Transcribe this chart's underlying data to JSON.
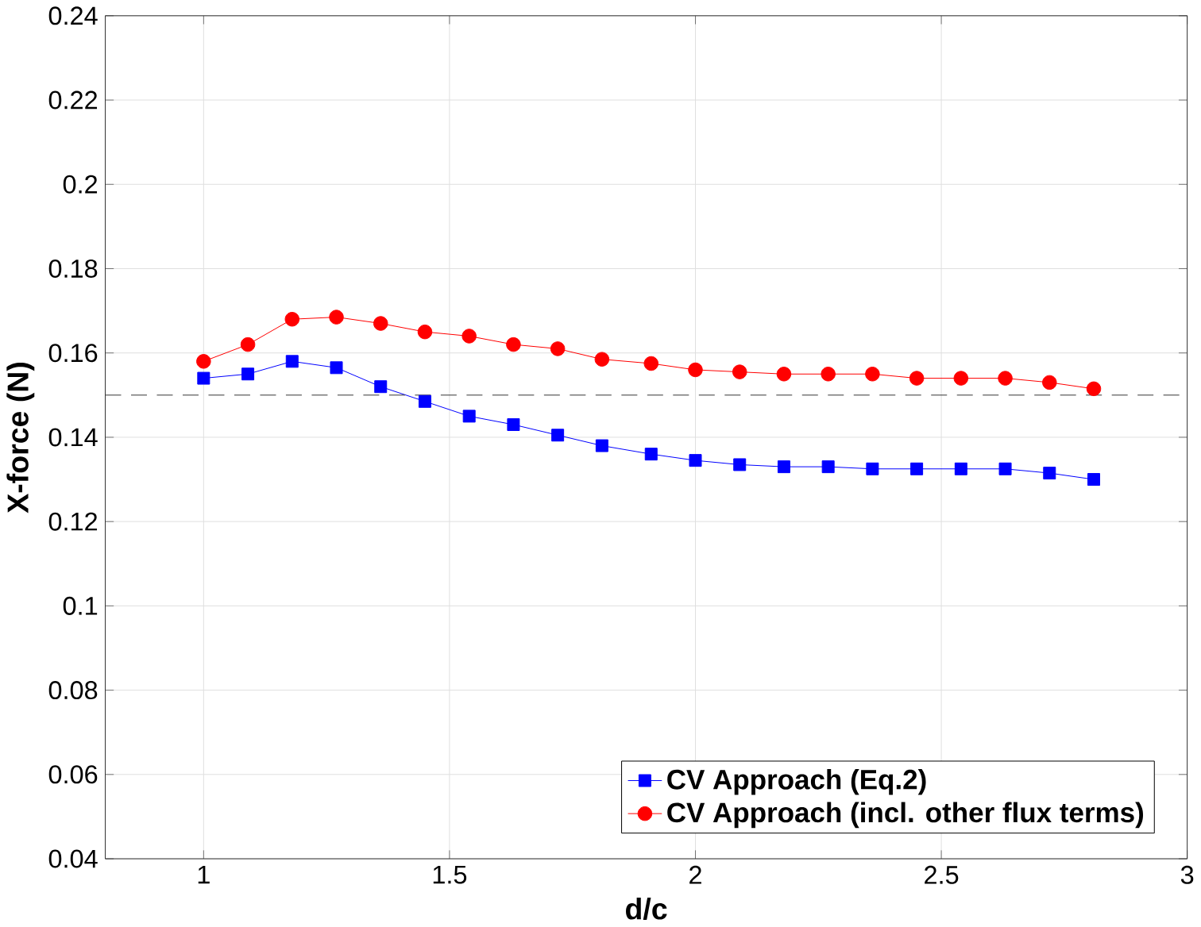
{
  "chart_data": {
    "type": "line",
    "xlabel": "d/c",
    "ylabel": "X-force (N)",
    "x": [
      1,
      1.09,
      1.18,
      1.27,
      1.36,
      1.45,
      1.54,
      1.63,
      1.72,
      1.81,
      1.91,
      2.0,
      2.09,
      2.18,
      2.27,
      2.36,
      2.45,
      2.54,
      2.63,
      2.72,
      2.81
    ],
    "series": [
      {
        "name": "CV Approach (Eq.2)",
        "color": "#0000ff",
        "marker": "square",
        "values": [
          0.154,
          0.155,
          0.158,
          0.1565,
          0.152,
          0.1485,
          0.145,
          0.143,
          0.1405,
          0.138,
          0.136,
          0.1345,
          0.1335,
          0.133,
          0.133,
          0.1325,
          0.1325,
          0.1325,
          0.1325,
          0.1315,
          0.13
        ]
      },
      {
        "name": "CV Approach (incl. other flux terms)",
        "color": "#ff0000",
        "marker": "circle",
        "values": [
          0.158,
          0.162,
          0.168,
          0.1685,
          0.167,
          0.165,
          0.164,
          0.162,
          0.161,
          0.1585,
          0.1575,
          0.156,
          0.1555,
          0.155,
          0.155,
          0.155,
          0.154,
          0.154,
          0.154,
          0.153,
          0.1515
        ]
      }
    ],
    "xlim": [
      0.8,
      3
    ],
    "ylim": [
      0.04,
      0.24
    ],
    "xticks": [
      1,
      1.5,
      2,
      2.5,
      3
    ],
    "yticks": [
      0.04,
      0.06,
      0.08,
      0.1,
      0.12,
      0.14,
      0.16,
      0.18,
      0.2,
      0.22,
      0.24
    ],
    "ref_lines": [
      {
        "axis": "y",
        "value": 0.15,
        "color": "#333333",
        "line_style": "dashed"
      }
    ],
    "grid": true,
    "legend": "bottom right",
    "line_style": "solid"
  }
}
